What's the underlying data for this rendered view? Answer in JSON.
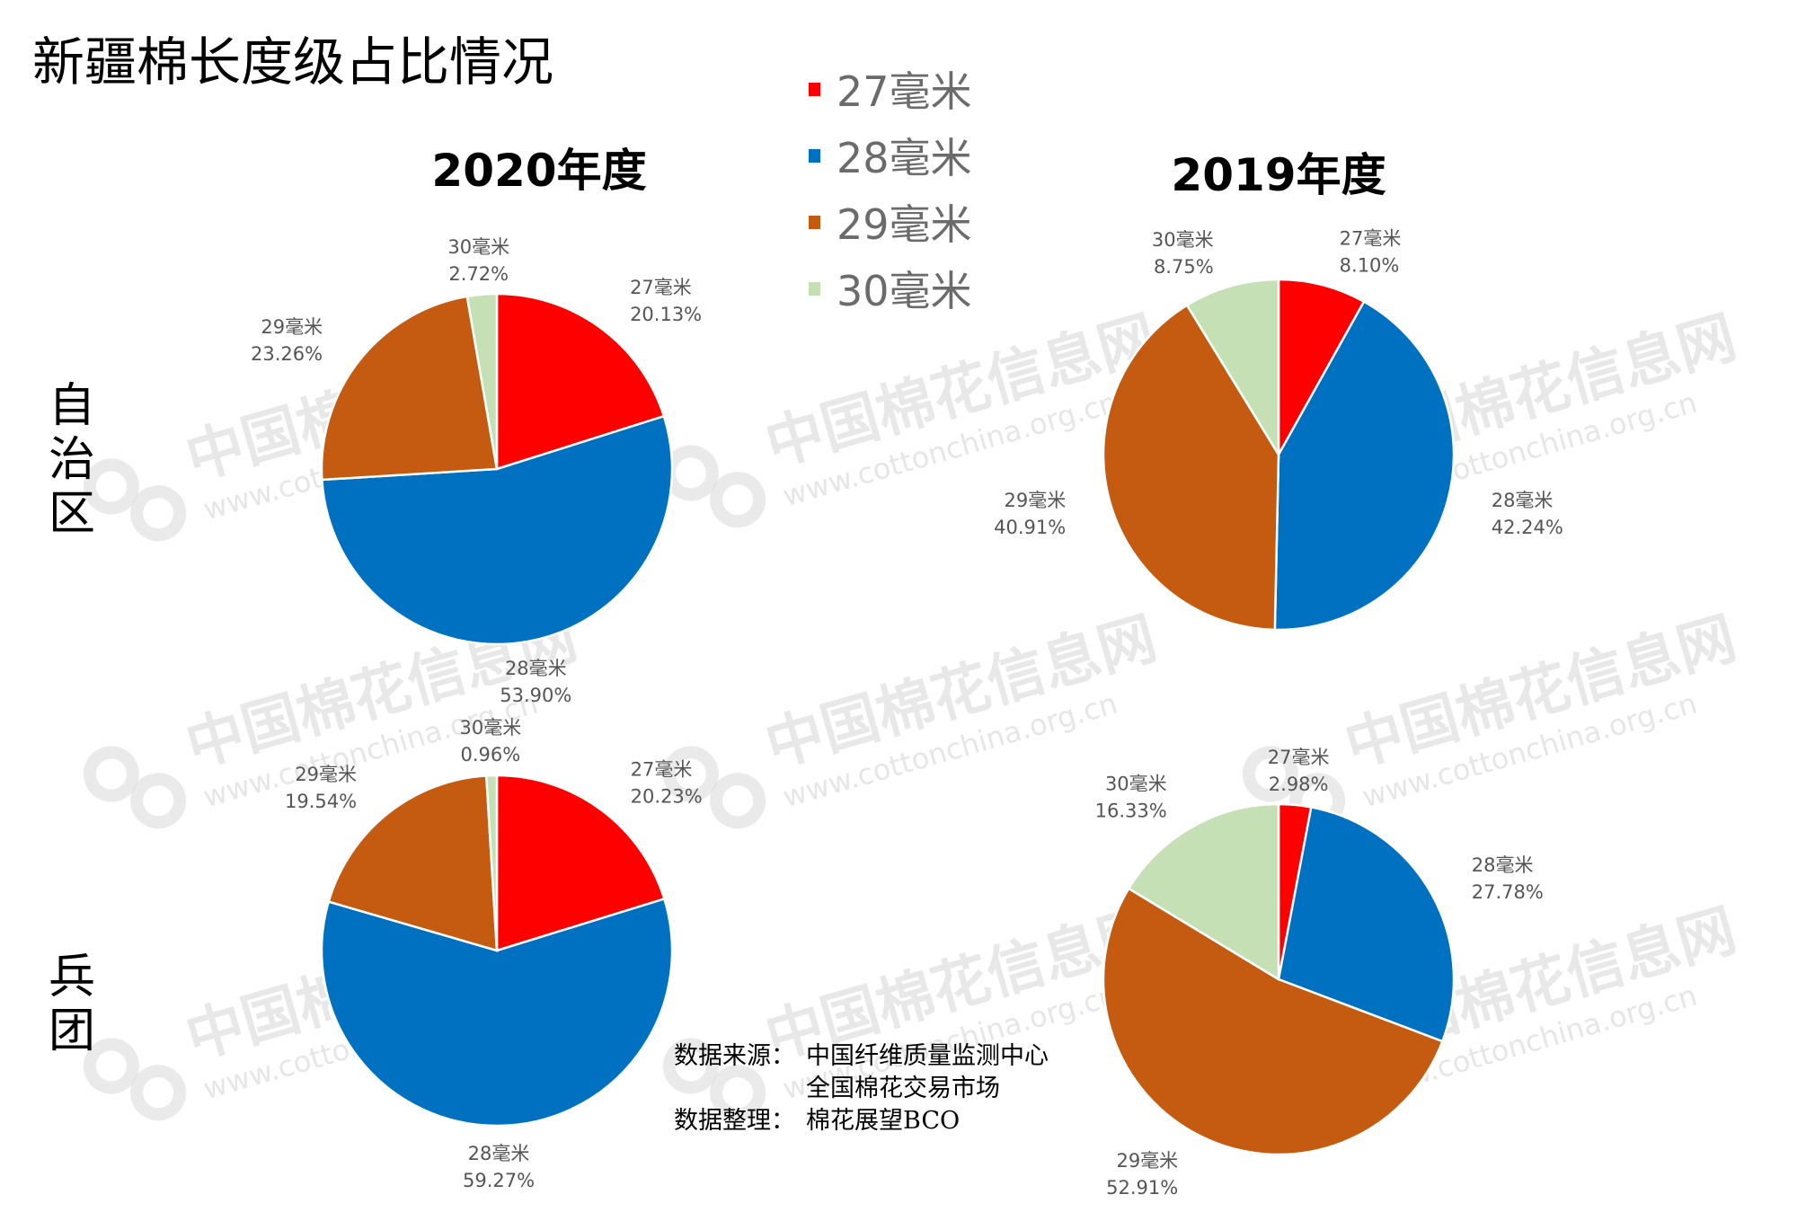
{
  "title": "新疆棉长度级占比情况",
  "columns": [
    "2020年度",
    "2019年度"
  ],
  "rows": [
    "自治区",
    "兵团"
  ],
  "legend": [
    {
      "label": "27毫米",
      "color": "#ff0000"
    },
    {
      "label": "28毫米",
      "color": "#0070c0"
    },
    {
      "label": "29毫米",
      "color": "#c55a11"
    },
    {
      "label": "30毫米",
      "color": "#c5e0b4"
    }
  ],
  "source": {
    "source_label": "数据来源：",
    "source_lines": [
      "中国纤维质量监测中心",
      "全国棉花交易市场"
    ],
    "compiler_label": "数据整理：",
    "compiler": "棉花展望BCO"
  },
  "watermark": {
    "name": "中国棉花信息网",
    "url": "www.cottonchina.org.cn"
  },
  "chart_data": [
    {
      "type": "pie",
      "title": "2020年度 自治区",
      "categories": [
        "27毫米",
        "28毫米",
        "29毫米",
        "30毫米"
      ],
      "values": [
        20.13,
        53.9,
        23.26,
        2.72
      ],
      "labels": [
        "20.13%",
        "53.90%",
        "23.26%",
        "2.72%"
      ]
    },
    {
      "type": "pie",
      "title": "2019年度 自治区",
      "categories": [
        "27毫米",
        "28毫米",
        "29毫米",
        "30毫米"
      ],
      "values": [
        8.1,
        42.24,
        40.91,
        8.75
      ],
      "labels": [
        "8.10%",
        "42.24%",
        "40.91%",
        "8.75%"
      ]
    },
    {
      "type": "pie",
      "title": "2020年度 兵团",
      "categories": [
        "27毫米",
        "28毫米",
        "29毫米",
        "30毫米"
      ],
      "values": [
        20.23,
        59.27,
        19.54,
        0.96
      ],
      "labels": [
        "20.23%",
        "59.27%",
        "19.54%",
        "0.96%"
      ]
    },
    {
      "type": "pie",
      "title": "2019年度 兵团",
      "categories": [
        "27毫米",
        "28毫米",
        "29毫米",
        "30毫米"
      ],
      "values": [
        2.98,
        27.78,
        52.91,
        16.33
      ],
      "labels": [
        "2.98%",
        "27.78%",
        "52.91%",
        "16.33%"
      ]
    }
  ]
}
